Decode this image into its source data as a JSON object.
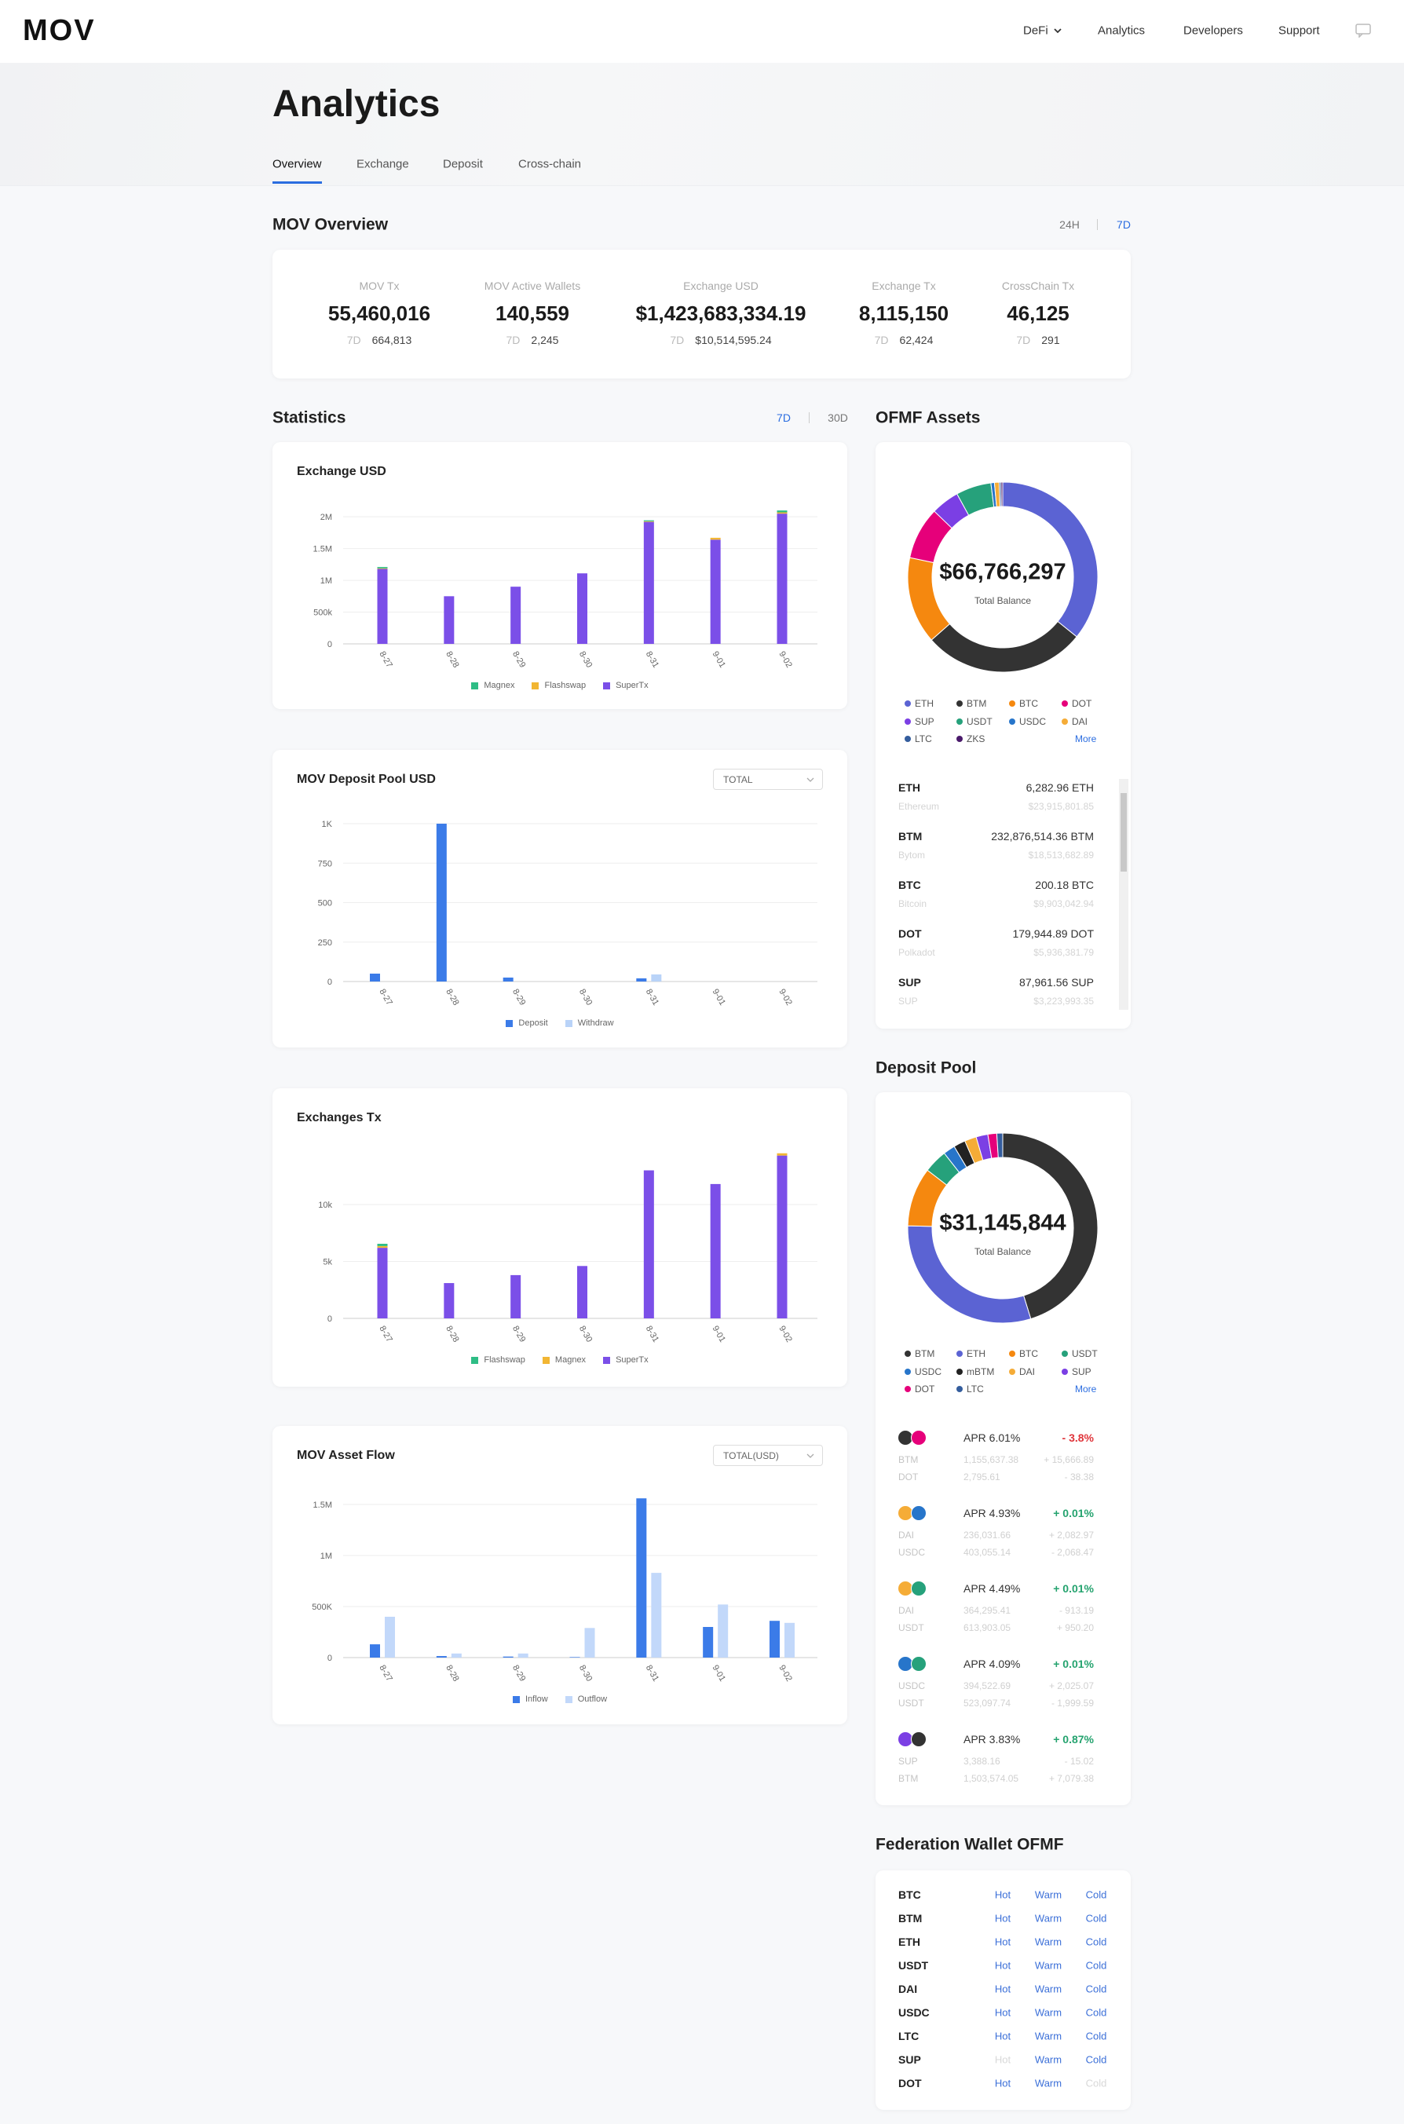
{
  "nav": {
    "logo": "MOV",
    "items": [
      "DeFi",
      "Analytics",
      "Developers",
      "Support"
    ]
  },
  "header": {
    "title": "Analytics",
    "tabs": [
      "Overview",
      "Exchange",
      "Deposit",
      "Cross-chain"
    ],
    "active_tab": 0
  },
  "overview": {
    "title": "MOV Overview",
    "ranges": [
      "24H",
      "7D"
    ],
    "active_range": 1,
    "stats": [
      {
        "label": "MOV Tx",
        "value": "55,460,016",
        "period": "7D",
        "change": "664,813"
      },
      {
        "label": "MOV Active Wallets",
        "value": "140,559",
        "period": "7D",
        "change": "2,245"
      },
      {
        "label": "Exchange USD",
        "value": "$1,423,683,334.19",
        "period": "7D",
        "change": "$10,514,595.24"
      },
      {
        "label": "Exchange Tx",
        "value": "8,115,150",
        "period": "7D",
        "change": "62,424"
      },
      {
        "label": "CrossChain Tx",
        "value": "46,125",
        "period": "7D",
        "change": "291"
      }
    ]
  },
  "statistics": {
    "title": "Statistics",
    "ranges": [
      "7D",
      "30D"
    ],
    "active_range": 0,
    "charts": [
      {
        "type": "bar",
        "stacked": true,
        "grid": true,
        "title": "Exchange USD",
        "categories": [
          "8-27",
          "8-28",
          "8-29",
          "8-30",
          "8-31",
          "9-01",
          "9-02"
        ],
        "series": [
          {
            "name": "Magnex",
            "color": "#2ebd85",
            "values": [
              20000,
              0,
              0,
              0,
              15000,
              0,
              30000
            ]
          },
          {
            "name": "Flashswap",
            "color": "#f2b633",
            "values": [
              10000,
              0,
              0,
              0,
              10000,
              30000,
              20000
            ]
          },
          {
            "name": "SuperTx",
            "color": "#7b4fe8",
            "values": [
              1180000,
              750000,
              900000,
              1110000,
              1920000,
              1640000,
              2050000
            ]
          }
        ],
        "ylim": [
          0,
          2200000
        ],
        "yticks": [
          0,
          {
            "value": 500000,
            "label": "500k"
          },
          {
            "value": 1000000,
            "label": "1M"
          },
          {
            "value": 1500000,
            "label": "1.5M"
          },
          {
            "value": 2000000,
            "label": "2M"
          }
        ]
      },
      {
        "type": "bar",
        "stacked": false,
        "grid": true,
        "title": "MOV Deposit Pool USD",
        "dropdown": "TOTAL",
        "categories": [
          "8-27",
          "8-28",
          "8-29",
          "8-30",
          "8-31",
          "9-01",
          "9-02"
        ],
        "series": [
          {
            "name": "Deposit",
            "color": "#3b7be8",
            "values": [
              50,
              1000,
              25,
              0,
              20,
              0,
              0
            ]
          },
          {
            "name": "Withdraw",
            "color": "#b9d3f8",
            "values": [
              0,
              0,
              0,
              0,
              45,
              0,
              0
            ]
          }
        ],
        "ylim": [
          0,
          1000
        ],
        "yticks": [
          0,
          250,
          500,
          750,
          {
            "value": 1000,
            "label": "1K"
          }
        ]
      },
      {
        "type": "bar",
        "stacked": true,
        "grid": true,
        "title": "Exchanges Tx",
        "categories": [
          "8-27",
          "8-28",
          "8-29",
          "8-30",
          "8-31",
          "9-01",
          "9-02"
        ],
        "series": [
          {
            "name": "Flashswap",
            "color": "#2ebd85",
            "values": [
              200,
              0,
              0,
              0,
              0,
              0,
              0
            ]
          },
          {
            "name": "Magnex",
            "color": "#f2b633",
            "values": [
              150,
              0,
              0,
              0,
              0,
              0,
              200
            ]
          },
          {
            "name": "SuperTx",
            "color": "#7b4fe8",
            "values": [
              6200,
              3100,
              3800,
              4600,
              13000,
              11800,
              14300
            ]
          }
        ],
        "ylim": [
          0,
          16000
        ],
        "yticks": [
          0,
          {
            "value": 5000,
            "label": "5k"
          },
          {
            "value": 10000,
            "label": "10k"
          }
        ]
      },
      {
        "type": "bar",
        "stacked": false,
        "grid": true,
        "title": "MOV Asset Flow",
        "dropdown": "TOTAL(USD)",
        "categories": [
          "8-27",
          "8-28",
          "8-29",
          "8-30",
          "8-31",
          "9-01",
          "9-02"
        ],
        "series": [
          {
            "name": "Inflow",
            "color": "#3b7be8",
            "values": [
              130000,
              15000,
              10000,
              5000,
              1560000,
              300000,
              360000
            ]
          },
          {
            "name": "Outflow",
            "color": "#c2d8fa",
            "values": [
              400000,
              40000,
              40000,
              290000,
              830000,
              520000,
              340000
            ]
          }
        ],
        "ylim": [
          0,
          1600000
        ],
        "yticks": [
          0,
          {
            "value": 500000,
            "label": "500K"
          },
          {
            "value": 1000000,
            "label": "1M"
          },
          {
            "value": 1500000,
            "label": "1.5M"
          }
        ]
      }
    ]
  },
  "ofmf_assets": {
    "title": "OFMF Assets",
    "donut": {
      "type": "pie",
      "total": "$66,766,297",
      "total_label": "Total Balance",
      "categories": [
        "ETH",
        "BTM",
        "BTC",
        "DOT",
        "SUP",
        "USDT",
        "USDC",
        "DAI",
        "LTC",
        "ZKS"
      ],
      "values": [
        35.8,
        27.7,
        14.8,
        8.9,
        4.8,
        6.0,
        0.6,
        0.8,
        0.3,
        0.3
      ],
      "colors": [
        "#5b63d3",
        "#333333",
        "#f5880f",
        "#e6007a",
        "#7b3fe4",
        "#26a17b",
        "#2775ca",
        "#f5ac37",
        "#345d9d",
        "#4a1a6b"
      ]
    },
    "more": "More",
    "list": [
      {
        "symbol": "ETH",
        "amount": "6,282.96 ETH",
        "name": "Ethereum",
        "usd": "$23,915,801.85"
      },
      {
        "symbol": "BTM",
        "amount": "232,876,514.36 BTM",
        "name": "Bytom",
        "usd": "$18,513,682.89"
      },
      {
        "symbol": "BTC",
        "amount": "200.18 BTC",
        "name": "Bitcoin",
        "usd": "$9,903,042.94"
      },
      {
        "symbol": "DOT",
        "amount": "179,944.89 DOT",
        "name": "Polkadot",
        "usd": "$5,936,381.79"
      },
      {
        "symbol": "SUP",
        "amount": "87,961.56 SUP",
        "name": "SUP",
        "usd": "$3,223,993.35"
      }
    ]
  },
  "deposit_pool": {
    "title": "Deposit Pool",
    "donut": {
      "type": "pie",
      "total": "$31,145,844",
      "total_label": "Total Balance",
      "categories": [
        "BTM",
        "ETH",
        "BTC",
        "USDT",
        "USDC",
        "mBTM",
        "DAI",
        "SUP",
        "DOT",
        "LTC"
      ],
      "values": [
        45,
        30,
        10,
        4,
        2,
        2,
        2,
        2,
        1.5,
        1
      ],
      "colors": [
        "#333333",
        "#5b63d3",
        "#f5880f",
        "#26a17b",
        "#2775ca",
        "#222222",
        "#f5ac37",
        "#7b3fe4",
        "#e6007a",
        "#345d9d"
      ]
    },
    "more": "More",
    "list": [
      {
        "pair": [
          "BTM",
          "DOT"
        ],
        "apr": "APR 6.01%",
        "change": "- 3.8%",
        "rows": [
          {
            "asset": "BTM",
            "amount": "1,155,637.38",
            "delta": "+ 15,666.89"
          },
          {
            "asset": "DOT",
            "amount": "2,795.61",
            "delta": "- 38.38"
          }
        ]
      },
      {
        "pair": [
          "DAI",
          "USDC"
        ],
        "apr": "APR 4.93%",
        "change": "+ 0.01%",
        "rows": [
          {
            "asset": "DAI",
            "amount": "236,031.66",
            "delta": "+ 2,082.97"
          },
          {
            "asset": "USDC",
            "amount": "403,055.14",
            "delta": "- 2,068.47"
          }
        ]
      },
      {
        "pair": [
          "DAI",
          "USDT"
        ],
        "apr": "APR 4.49%",
        "change": "+ 0.01%",
        "rows": [
          {
            "asset": "DAI",
            "amount": "364,295.41",
            "delta": "- 913.19"
          },
          {
            "asset": "USDT",
            "amount": "613,903.05",
            "delta": "+ 950.20"
          }
        ]
      },
      {
        "pair": [
          "USDC",
          "USDT"
        ],
        "apr": "APR 4.09%",
        "change": "+ 0.01%",
        "rows": [
          {
            "asset": "USDC",
            "amount": "394,522.69",
            "delta": "+ 2,025.07"
          },
          {
            "asset": "USDT",
            "amount": "523,097.74",
            "delta": "- 1,999.59"
          }
        ]
      },
      {
        "pair": [
          "SUP",
          "BTM"
        ],
        "apr": "APR 3.83%",
        "change": "+ 0.87%",
        "rows": [
          {
            "asset": "SUP",
            "amount": "3,388.16",
            "delta": "- 15.02"
          },
          {
            "asset": "BTM",
            "amount": "1,503,574.05",
            "delta": "+ 7,079.38"
          }
        ]
      }
    ]
  },
  "federation_wallet": {
    "title": "Federation Wallet OFMF",
    "rows": [
      {
        "asset": "BTC",
        "links": [
          "Hot",
          "Warm",
          "Cold"
        ],
        "muted": []
      },
      {
        "asset": "BTM",
        "links": [
          "Hot",
          "Warm",
          "Cold"
        ],
        "muted": []
      },
      {
        "asset": "ETH",
        "links": [
          "Hot",
          "Warm",
          "Cold"
        ],
        "muted": []
      },
      {
        "asset": "USDT",
        "links": [
          "Hot",
          "Warm",
          "Cold"
        ],
        "muted": []
      },
      {
        "asset": "DAI",
        "links": [
          "Hot",
          "Warm",
          "Cold"
        ],
        "muted": []
      },
      {
        "asset": "USDC",
        "links": [
          "Hot",
          "Warm",
          "Cold"
        ],
        "muted": []
      },
      {
        "asset": "LTC",
        "links": [
          "Hot",
          "Warm",
          "Cold"
        ],
        "muted": []
      },
      {
        "asset": "SUP",
        "links": [
          "Hot",
          "Warm",
          "Cold"
        ],
        "muted": [
          0
        ]
      },
      {
        "asset": "DOT",
        "links": [
          "Hot",
          "Warm",
          "Cold"
        ],
        "muted": [
          2
        ]
      }
    ]
  }
}
